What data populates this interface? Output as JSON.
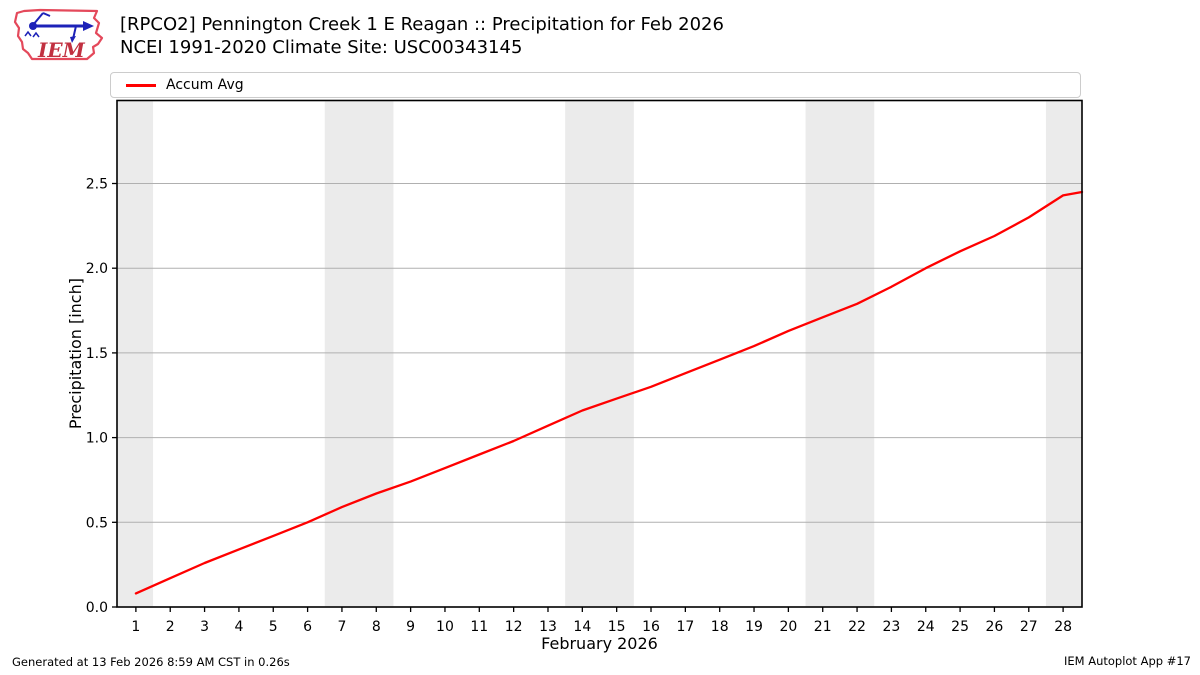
{
  "header": {
    "title_line1": "[RPCO2] Pennington Creek 1 E Reagan :: Precipitation for Feb 2026",
    "title_line2": "NCEI 1991-2020 Climate Site: USC00343145",
    "logo_text": "IEM"
  },
  "legend": {
    "items": [
      {
        "label": "Accum Avg",
        "color": "#ff0000"
      }
    ]
  },
  "axes": {
    "xlabel": "February 2026",
    "ylabel": "Precipitation [inch]"
  },
  "footer": {
    "left": "Generated at 13 Feb 2026 8:59 AM CST in 0.26s",
    "right": "IEM Autoplot App #17"
  },
  "chart_data": {
    "type": "line",
    "title": "[RPCO2] Pennington Creek 1 E Reagan :: Precipitation for Feb 2026",
    "subtitle": "NCEI 1991-2020 Climate Site: USC00343145",
    "xlabel": "February 2026",
    "ylabel": "Precipitation [inch]",
    "xlim": [
      0.45,
      28.55
    ],
    "ylim": [
      0,
      2.99
    ],
    "grid": "horizontal",
    "grid_color": "#b0b0b0",
    "band_color": "#ebebeb",
    "legend_position": "top",
    "xticks": [
      1,
      2,
      3,
      4,
      5,
      6,
      7,
      8,
      9,
      10,
      11,
      12,
      13,
      14,
      15,
      16,
      17,
      18,
      19,
      20,
      21,
      22,
      23,
      24,
      25,
      26,
      27,
      28
    ],
    "xtick_labels": [
      "1",
      "2",
      "3",
      "4",
      "5",
      "6",
      "7",
      "8",
      "9",
      "10",
      "11",
      "12",
      "13",
      "14",
      "15",
      "16",
      "17",
      "18",
      "19",
      "20",
      "21",
      "22",
      "23",
      "24",
      "25",
      "26",
      "27",
      "28"
    ],
    "yticks": [
      0.0,
      0.5,
      1.0,
      1.5,
      2.0,
      2.5
    ],
    "ytick_labels": [
      "0.0",
      "0.5",
      "1.0",
      "1.5",
      "2.0",
      "2.5"
    ],
    "weekend_bands": [
      [
        0.45,
        1.5
      ],
      [
        6.5,
        8.5
      ],
      [
        13.5,
        15.5
      ],
      [
        20.5,
        22.5
      ],
      [
        27.5,
        28.55
      ]
    ],
    "series": [
      {
        "name": "Accum Avg",
        "color": "#ff0000",
        "x": [
          1,
          2,
          3,
          4,
          5,
          6,
          7,
          8,
          9,
          10,
          11,
          12,
          13,
          14,
          15,
          16,
          17,
          18,
          19,
          20,
          21,
          22,
          23,
          24,
          25,
          26,
          27,
          28,
          28.55
        ],
        "y": [
          0.08,
          0.17,
          0.26,
          0.34,
          0.42,
          0.5,
          0.59,
          0.67,
          0.74,
          0.82,
          0.9,
          0.98,
          1.07,
          1.16,
          1.23,
          1.3,
          1.38,
          1.46,
          1.54,
          1.63,
          1.71,
          1.79,
          1.89,
          2.0,
          2.1,
          2.19,
          2.3,
          2.43,
          2.45
        ]
      }
    ]
  }
}
